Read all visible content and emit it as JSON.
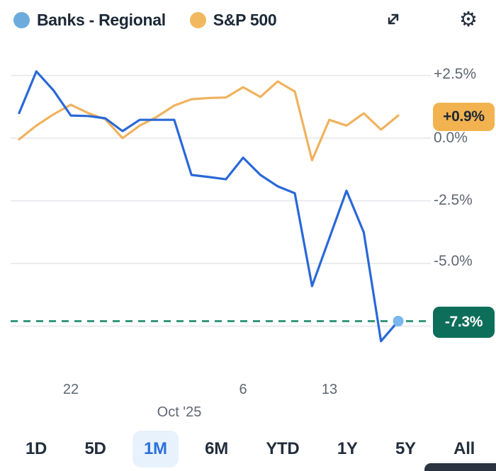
{
  "legend": {
    "series": [
      {
        "label": "Banks - Regional",
        "dot_color": "#6cabdd"
      },
      {
        "label": "S&P 500",
        "dot_color": "#f2b860"
      }
    ]
  },
  "toolbar": {
    "expand_icon": "expand-diagonal-arrows",
    "settings_icon": "gear"
  },
  "chart_data": {
    "type": "line",
    "title": "",
    "num_points": 23,
    "unit": "%",
    "legend_position": "top",
    "series": [
      {
        "name": "Banks - Regional",
        "color": "#2a68d8",
        "values": [
          1.0,
          2.66,
          1.9,
          0.9,
          0.88,
          0.79,
          0.28,
          0.73,
          0.73,
          0.73,
          -1.47,
          -1.55,
          -1.64,
          -0.78,
          -1.47,
          -1.92,
          -2.2,
          -5.9,
          -4.0,
          -2.1,
          -3.76,
          -8.1,
          -7.3
        ],
        "end_value_label": "-7.3%",
        "end_marker": true,
        "end_marker_color": "#79b7ee"
      },
      {
        "name": "S&P 500",
        "color": "#f0b25e",
        "values": [
          -0.05,
          0.5,
          0.95,
          1.33,
          1.0,
          0.75,
          0.0,
          0.5,
          0.85,
          1.3,
          1.55,
          1.6,
          1.62,
          2.03,
          1.64,
          2.26,
          1.86,
          -0.88,
          0.73,
          0.5,
          0.99,
          0.34,
          0.9
        ],
        "end_value_label": "+0.9%",
        "end_marker": false
      }
    ],
    "y_axis": {
      "gridline_values": [
        2.5,
        0,
        -2.5,
        -5,
        -7.5
      ],
      "tick_labels": [
        "+2.5%",
        "0.0%",
        "-2.5%",
        "-5.0%"
      ],
      "gridline_color": "#e3e6ea"
    },
    "x_axis": {
      "tick_points": [
        {
          "index": 3,
          "label": "22"
        },
        {
          "index": 13,
          "label": "6"
        },
        {
          "index": 18,
          "label": "13"
        }
      ],
      "month_label": "Oct '25"
    },
    "reference_line": {
      "value": -7.3,
      "style": "dashed",
      "color": "#1f8a6e"
    },
    "ylim": [
      -8.8,
      3.2
    ]
  },
  "badges": {
    "sp500": {
      "text": "+0.9%",
      "bg": "#f2b24f"
    },
    "banks": {
      "text": "-7.3%",
      "bg": "#0d6e5a"
    }
  },
  "range_tabs": [
    {
      "label": "1D",
      "selected": false
    },
    {
      "label": "5D",
      "selected": false
    },
    {
      "label": "1M",
      "selected": true
    },
    {
      "label": "6M",
      "selected": false
    },
    {
      "label": "YTD",
      "selected": false
    },
    {
      "label": "1Y",
      "selected": false
    },
    {
      "label": "5Y",
      "selected": false
    },
    {
      "label": "All",
      "selected": false
    }
  ]
}
